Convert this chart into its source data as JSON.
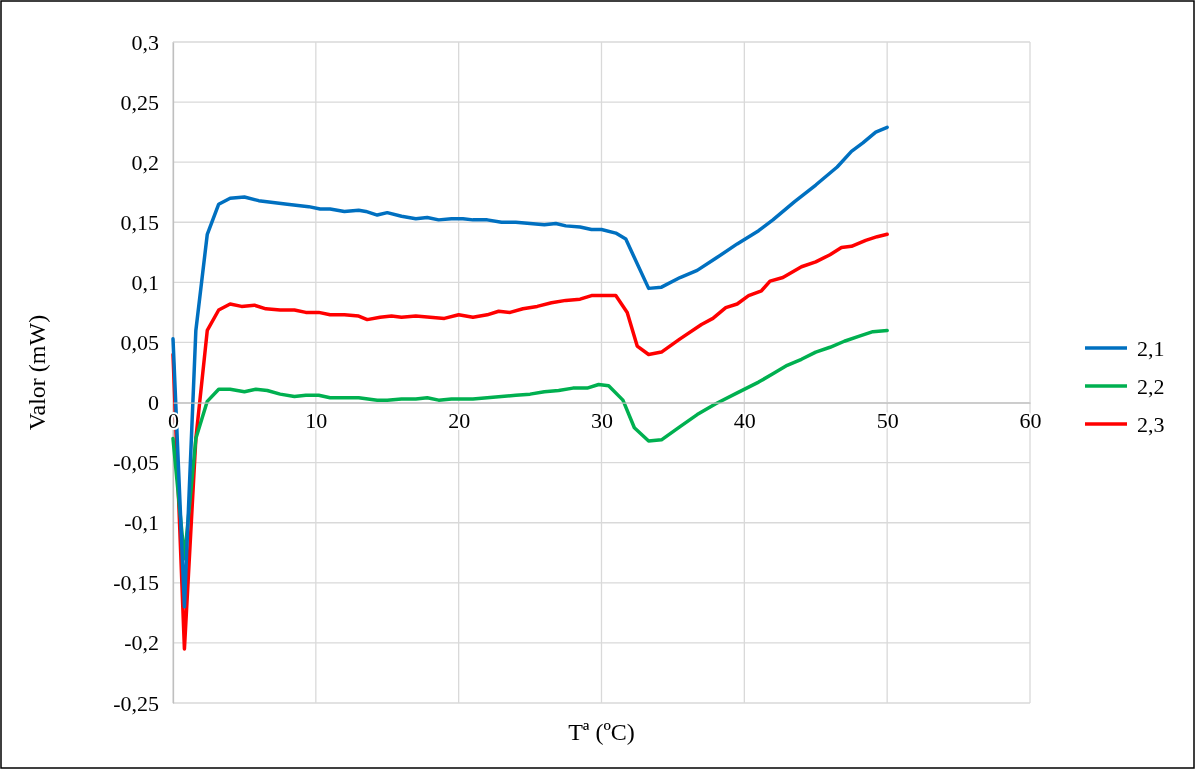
{
  "chart_data": {
    "type": "line",
    "xlabel": "Tª (ºC)",
    "ylabel": "Valor (mW)",
    "xlim": [
      0,
      60
    ],
    "xticks": [
      0,
      10,
      20,
      30,
      40,
      50,
      60
    ],
    "ylim": [
      -0.25,
      0.3
    ],
    "yticks": [
      {
        "value": -0.25,
        "label": "-0,25"
      },
      {
        "value": -0.2,
        "label": "-0,2"
      },
      {
        "value": -0.15,
        "label": "-0,15"
      },
      {
        "value": -0.1,
        "label": "-0,1"
      },
      {
        "value": -0.05,
        "label": "-0,05"
      },
      {
        "value": 0,
        "label": "0"
      },
      {
        "value": 0.05,
        "label": "0,05"
      },
      {
        "value": 0.1,
        "label": "0,1"
      },
      {
        "value": 0.15,
        "label": "0,15"
      },
      {
        "value": 0.2,
        "label": "0,2"
      },
      {
        "value": 0.25,
        "label": "0,25"
      },
      {
        "value": 0.3,
        "label": "0,3"
      }
    ],
    "grid": true,
    "legend": "right",
    "marker": "none",
    "line_style": "solid",
    "series": [
      {
        "name": "2,1",
        "color": "#0070c0",
        "x": [
          0,
          0.8,
          1.6,
          2.4,
          3.2,
          4,
          5,
          6,
          8,
          9.5,
          10.3,
          11,
          12,
          13,
          13.5,
          14.3,
          15,
          16,
          17,
          17.8,
          18.6,
          19.5,
          20.3,
          21,
          22,
          23,
          24,
          25,
          26,
          26.8,
          27.5,
          28.5,
          29.3,
          30,
          31,
          31.7,
          33.3,
          34.2,
          35.5,
          36.7,
          38,
          39.5,
          41,
          42,
          43.5,
          45,
          46.5,
          47.5,
          48.3,
          49.2,
          50
        ],
        "values": [
          0.053,
          -0.17,
          0.06,
          0.14,
          0.165,
          0.17,
          0.171,
          0.168,
          0.165,
          0.163,
          0.161,
          0.161,
          0.159,
          0.16,
          0.159,
          0.156,
          0.158,
          0.155,
          0.153,
          0.154,
          0.152,
          0.153,
          0.153,
          0.152,
          0.152,
          0.15,
          0.15,
          0.149,
          0.148,
          0.149,
          0.147,
          0.146,
          0.144,
          0.144,
          0.141,
          0.136,
          0.095,
          0.096,
          0.104,
          0.11,
          0.12,
          0.132,
          0.143,
          0.152,
          0.167,
          0.181,
          0.196,
          0.209,
          0.216,
          0.225,
          0.229
        ]
      },
      {
        "name": "2,2",
        "color": "#00b050",
        "x": [
          0,
          0.8,
          1.6,
          2.4,
          3.2,
          4,
          5,
          5.8,
          6.6,
          7.5,
          8.5,
          9.3,
          10.2,
          11,
          12,
          13,
          14.3,
          15,
          16,
          17,
          17.8,
          18.6,
          19.5,
          21,
          22,
          23,
          24,
          25,
          26,
          27,
          28,
          29,
          29.8,
          30.5,
          31.5,
          32.3,
          33.3,
          34.2,
          35.5,
          36.7,
          38,
          39.5,
          41,
          42,
          43,
          44,
          45,
          46,
          47,
          48,
          49,
          50
        ],
        "values": [
          -0.03,
          -0.13,
          -0.03,
          0.001,
          0.011,
          0.011,
          0.009,
          0.011,
          0.01,
          0.007,
          0.005,
          0.006,
          0.006,
          0.004,
          0.004,
          0.004,
          0.002,
          0.002,
          0.003,
          0.003,
          0.004,
          0.002,
          0.003,
          0.003,
          0.004,
          0.005,
          0.006,
          0.007,
          0.009,
          0.01,
          0.012,
          0.012,
          0.015,
          0.014,
          0.002,
          -0.021,
          -0.032,
          -0.031,
          -0.02,
          -0.01,
          -0.001,
          0.008,
          0.017,
          0.024,
          0.031,
          0.036,
          0.042,
          0.046,
          0.051,
          0.055,
          0.059,
          0.06
        ]
      },
      {
        "name": "2,3",
        "color": "#ff0000",
        "x": [
          0,
          0.8,
          1.6,
          2.4,
          3.2,
          4,
          4.8,
          5.7,
          6.5,
          7.5,
          8.5,
          9.3,
          10.2,
          11,
          12,
          13,
          13.6,
          14.5,
          15.3,
          16,
          17,
          18,
          19,
          20,
          21,
          22,
          22.8,
          23.6,
          24.5,
          25.5,
          26.5,
          27.5,
          28.5,
          29.3,
          30,
          31,
          31.8,
          32.5,
          33.3,
          34.2,
          35.5,
          37,
          37.8,
          38.7,
          39.5,
          40.3,
          41.2,
          41.8,
          42.7,
          44,
          45,
          46,
          46.8,
          47.5,
          48.5,
          49.3,
          50
        ],
        "values": [
          0.04,
          -0.205,
          -0.03,
          0.06,
          0.077,
          0.082,
          0.08,
          0.081,
          0.078,
          0.077,
          0.077,
          0.075,
          0.075,
          0.073,
          0.073,
          0.072,
          0.069,
          0.071,
          0.072,
          0.071,
          0.072,
          0.071,
          0.07,
          0.073,
          0.071,
          0.073,
          0.076,
          0.075,
          0.078,
          0.08,
          0.083,
          0.085,
          0.086,
          0.089,
          0.089,
          0.089,
          0.075,
          0.047,
          0.04,
          0.042,
          0.053,
          0.065,
          0.07,
          0.079,
          0.082,
          0.089,
          0.093,
          0.101,
          0.104,
          0.113,
          0.117,
          0.123,
          0.129,
          0.13,
          0.135,
          0.138,
          0.14
        ]
      }
    ]
  }
}
